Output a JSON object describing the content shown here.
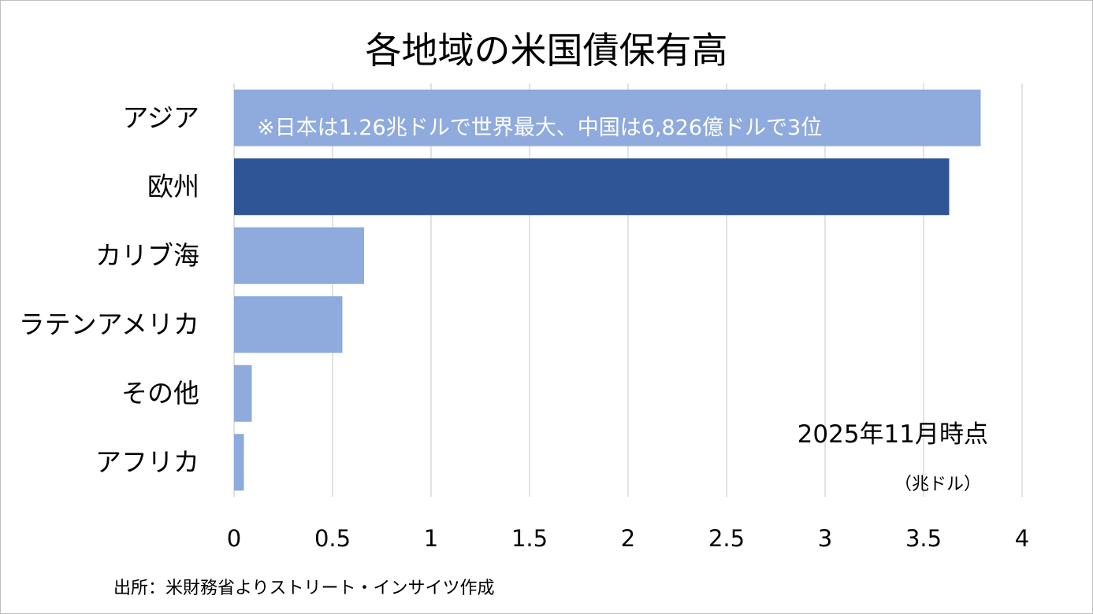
{
  "title": "各地域の米国債保有高",
  "annotation": "※日本は1.26兆ドルで世界最大、中国は6,826億ドルで3位",
  "date_note": "2025年11月時点",
  "unit_note": "（兆ドル）",
  "source": "出所：米財務省よりストリート・インサイツ作成",
  "colors": {
    "highlight": "#2f5597",
    "normal": "#8faadc",
    "grid": "#d9d9d9"
  },
  "chart_data": {
    "type": "bar",
    "orientation": "horizontal",
    "categories": [
      "アジア",
      "欧州",
      "カリブ海",
      "ラテンアメリカ",
      "その他",
      "アフリカ"
    ],
    "values": [
      3.79,
      3.63,
      0.66,
      0.55,
      0.09,
      0.05
    ],
    "highlighted_category": "欧州",
    "xlim": [
      0,
      4
    ],
    "xticks": [
      0,
      0.5,
      1,
      1.5,
      2,
      2.5,
      3,
      3.5,
      4
    ],
    "xtick_labels": [
      "0",
      "0.5",
      "1",
      "1.5",
      "2",
      "2.5",
      "3",
      "3.5",
      "4"
    ],
    "grid": "vertical"
  }
}
